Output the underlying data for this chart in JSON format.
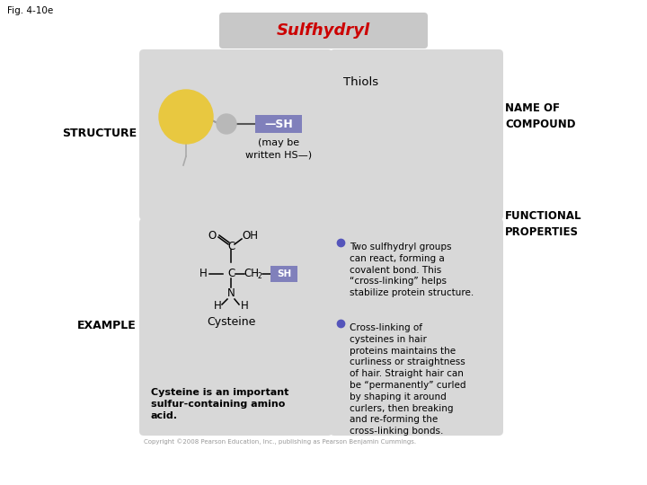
{
  "fig_label": "Fig. 4-10e",
  "title": "Sulfhydryl",
  "title_color": "#cc0000",
  "title_bg": "#c8c8c8",
  "bg_color": "#ffffff",
  "cell_bg": "#d8d8d8",
  "structure_label": "STRUCTURE",
  "example_label": "EXAMPLE",
  "name_of_compound_label": "NAME OF\nCOMPOUND",
  "functional_properties_label": "FUNCTIONAL\nPROPERTIES",
  "thiols_text": "Thiols",
  "may_be_written": "(may be\nwritten HS—)",
  "bullet1_text": "Two sulfhydryl groups\ncan react, forming a\ncovalent bond. This\n“cross-linking” helps\nstabilize protein structure.",
  "bullet2_text": "Cross-linking of\ncysteines in hair\nproteins maintains the\ncurliness or straightness\nof hair. Straight hair can\nbe “permanently” curled\nby shaping it around\ncurlers, then breaking\nand re-forming the\ncross-linking bonds.",
  "cysteine_label": "Cysteine",
  "cysteine_desc": "Cysteine is an important\nsulfur-containing amino\nacid.",
  "copyright_text": "Copyright ©2008 Pearson Education, Inc., publishing as Pearson Benjamin Cummings.",
  "sh_box_color": "#8080bb",
  "bullet_color": "#5555bb",
  "yellow_ball": "#e8c840",
  "gray_ball": "#b8b8b8",
  "stem_color": "#999999"
}
